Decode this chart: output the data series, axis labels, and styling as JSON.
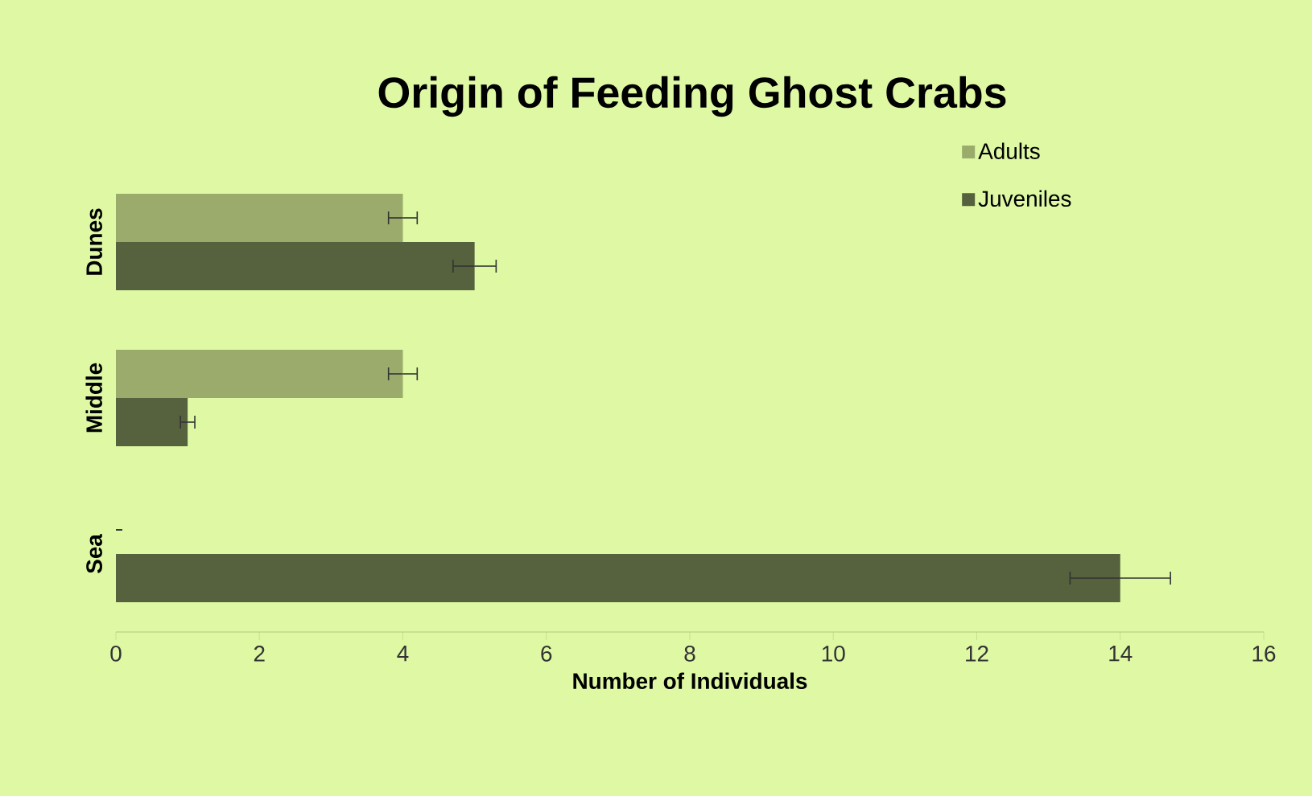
{
  "chart_data": {
    "type": "bar",
    "orientation": "horizontal",
    "title": "Origin of Feeding Ghost Crabs",
    "xlabel": "Number of Individuals",
    "categories": [
      "Dunes",
      "Middle",
      "Sea"
    ],
    "series": [
      {
        "name": "Adults",
        "color": "#9aab6b",
        "values": [
          4,
          4,
          0
        ],
        "errors": [
          0.2,
          0.2,
          0
        ]
      },
      {
        "name": "Juveniles",
        "color": "#56613d",
        "values": [
          5,
          1,
          14
        ],
        "errors": [
          0.3,
          0.1,
          0.7
        ]
      }
    ],
    "xlim": [
      0,
      16
    ],
    "xticks": [
      0,
      2,
      4,
      6,
      8,
      10,
      12,
      14,
      16
    ],
    "legend": "top right",
    "grid": false
  }
}
